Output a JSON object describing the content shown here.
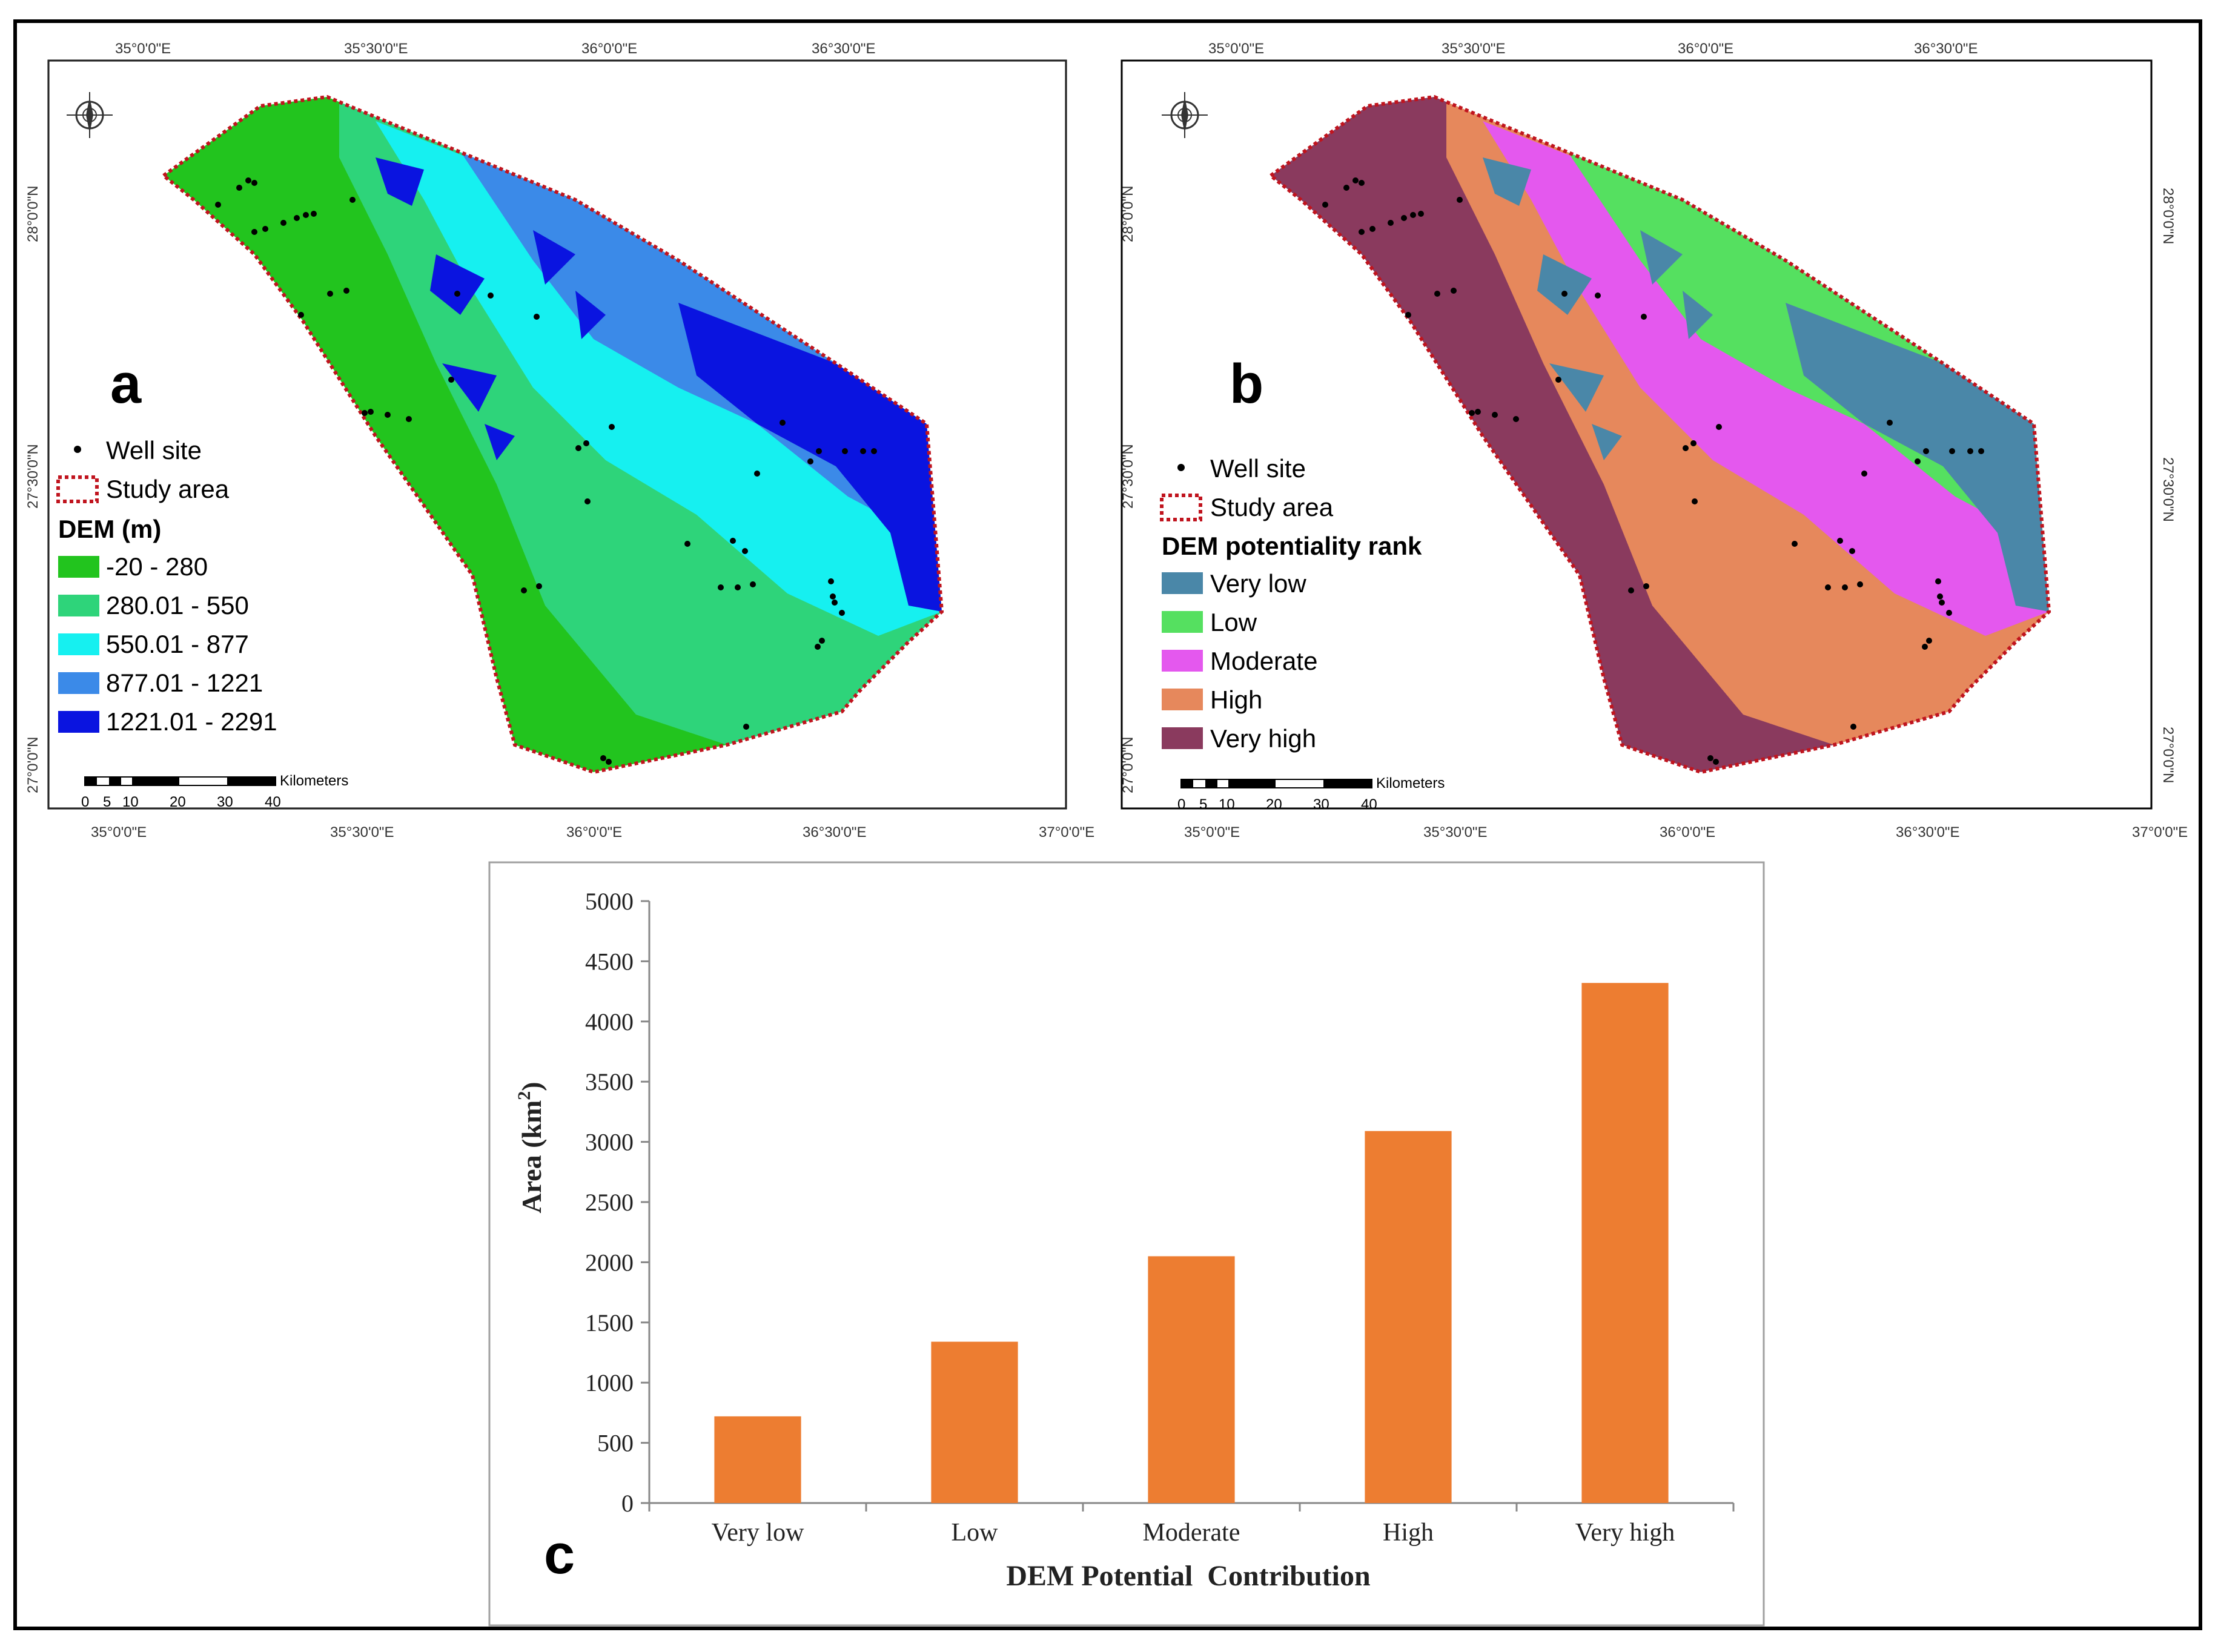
{
  "panels": {
    "a": {
      "letter": "a",
      "legend": {
        "well_label": "Well site",
        "study_label": "Study area",
        "title": "DEM (m)",
        "classes": [
          {
            "label": "-20 - 280",
            "color": "#22c41e"
          },
          {
            "label": "280.01 - 550",
            "color": "#2ed47a"
          },
          {
            "label": "550.01 - 877",
            "color": "#16f0f0"
          },
          {
            "label": "877.01 - 1221",
            "color": "#3b8ae8"
          },
          {
            "label": "1221.01 - 2291",
            "color": "#0a14e0"
          }
        ]
      }
    },
    "b": {
      "letter": "b",
      "legend": {
        "well_label": "Well site",
        "study_label": "Study area",
        "title": "DEM potentiality rank",
        "classes": [
          {
            "label": "Very low",
            "color": "#4a87a8"
          },
          {
            "label": "Low",
            "color": "#55e060"
          },
          {
            "label": "Moderate",
            "color": "#e458ee"
          },
          {
            "label": "High",
            "color": "#e6885c"
          },
          {
            "label": "Very high",
            "color": "#8a3a5e"
          }
        ]
      }
    }
  },
  "axes": {
    "top_lon": [
      "35°0'0\"E",
      "35°30'0\"E",
      "36°0'0\"E",
      "36°30'0\"E"
    ],
    "bottom_lon": [
      "35°0'0\"E",
      "35°30'0\"E",
      "36°0'0\"E",
      "36°30'0\"E",
      "37°0'0\"E"
    ],
    "lat": [
      "28°0'0\"N",
      "27°30'0\"N",
      "27°0'0\"N"
    ]
  },
  "scalebar": {
    "unit": "Kilometers",
    "ticks": [
      "0",
      "5",
      "10",
      "20",
      "30",
      "40"
    ]
  },
  "chart_data": {
    "type": "bar",
    "categories": [
      "Very low",
      "Low",
      "Moderate",
      "High",
      "Very high"
    ],
    "values": [
      720,
      1340,
      2050,
      3090,
      4320
    ],
    "ylim": [
      0,
      5000
    ],
    "yticks": [
      "0",
      "500",
      "1000",
      "1500",
      "2000",
      "2500",
      "3000",
      "3500",
      "4000",
      "4500",
      "5000"
    ],
    "ylabel": "Area (km",
    "ylabel_sup": "2",
    "ylabel_close": ")",
    "xlabel": "DEM Potential  Contribution",
    "bar_color": "#ed7d31",
    "panel_letter": "c"
  }
}
